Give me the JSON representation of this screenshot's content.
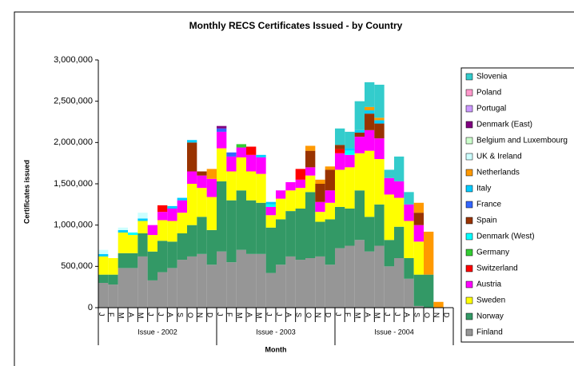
{
  "chart_data": {
    "type": "stacked_bar",
    "title": "Monthly RECS Certificates Issued - by Country",
    "y_label": "Certificates issued",
    "x_label": "Month",
    "categories": [
      "J",
      "F",
      "M",
      "A",
      "M",
      "J",
      "J",
      "A",
      "S",
      "O",
      "N",
      "D",
      "J",
      "F",
      "M",
      "A",
      "M",
      "J",
      "J",
      "A",
      "S",
      "O",
      "N",
      "D",
      "J",
      "F",
      "M",
      "A",
      "M",
      "J",
      "J",
      "A",
      "S",
      "O",
      "N",
      "D"
    ],
    "category_groups": [
      "Issue - 2002",
      "Issue - 2003",
      "Issue - 2004"
    ],
    "ylim": [
      0,
      3000000
    ],
    "yticks": [
      0,
      {
        "value": 500000,
        "label": "500,000"
      },
      {
        "value": 1000000,
        "label": "1,000,000"
      },
      {
        "value": 1500000,
        "label": "1,500,000"
      },
      {
        "value": 2000000,
        "label": "2,000,000"
      },
      {
        "value": 2500000,
        "label": "2,500,000"
      },
      {
        "value": 3000000,
        "label": "3,000,000"
      }
    ],
    "series": [
      {
        "name": "Finland",
        "color": "#969696",
        "values": [
          300000,
          280000,
          480000,
          480000,
          620000,
          330000,
          430000,
          480000,
          580000,
          620000,
          650000,
          520000,
          680000,
          550000,
          700000,
          650000,
          650000,
          420000,
          520000,
          620000,
          580000,
          600000,
          620000,
          520000,
          720000,
          750000,
          820000,
          680000,
          750000,
          500000,
          600000,
          350000,
          20000,
          0,
          0,
          0
        ]
      },
      {
        "name": "Norway",
        "color": "#339966",
        "values": [
          100000,
          120000,
          180000,
          180000,
          280000,
          350000,
          380000,
          320000,
          320000,
          380000,
          450000,
          420000,
          850000,
          750000,
          720000,
          650000,
          620000,
          550000,
          550000,
          550000,
          620000,
          800000,
          420000,
          550000,
          500000,
          450000,
          600000,
          420000,
          500000,
          320000,
          380000,
          250000,
          380000,
          400000,
          0,
          0
        ]
      },
      {
        "name": "Sweden",
        "color": "#ffff00",
        "values": [
          220000,
          200000,
          250000,
          220000,
          150000,
          200000,
          250000,
          250000,
          250000,
          500000,
          350000,
          400000,
          400000,
          350000,
          400000,
          350000,
          350000,
          150000,
          250000,
          250000,
          250000,
          200000,
          120000,
          200000,
          450000,
          500000,
          450000,
          800000,
          550000,
          550000,
          350000,
          450000,
          400000,
          0,
          0,
          0
        ]
      },
      {
        "name": "Austria",
        "color": "#ff00ff",
        "values": [
          0,
          0,
          0,
          0,
          0,
          120000,
          100000,
          150000,
          150000,
          150000,
          150000,
          220000,
          200000,
          180000,
          120000,
          200000,
          200000,
          100000,
          100000,
          100000,
          100000,
          100000,
          120000,
          150000,
          200000,
          150000,
          200000,
          250000,
          250000,
          200000,
          200000,
          200000,
          200000,
          0,
          0,
          0
        ]
      },
      {
        "name": "Switzerland",
        "color": "#ff0000",
        "values": [
          0,
          0,
          0,
          0,
          0,
          0,
          80000,
          0,
          0,
          0,
          0,
          0,
          0,
          0,
          0,
          100000,
          0,
          0,
          0,
          0,
          130000,
          0,
          0,
          0,
          50000,
          0,
          0,
          0,
          0,
          0,
          0,
          0,
          0,
          0,
          0,
          0
        ]
      },
      {
        "name": "Germany",
        "color": "#33cc33",
        "values": [
          0,
          0,
          0,
          0,
          0,
          0,
          0,
          0,
          0,
          0,
          0,
          0,
          0,
          0,
          40000,
          0,
          0,
          0,
          0,
          0,
          0,
          0,
          0,
          0,
          0,
          0,
          0,
          0,
          0,
          0,
          0,
          0,
          0,
          0,
          0,
          0
        ]
      },
      {
        "name": "Denmark (West)",
        "color": "#00ffff",
        "values": [
          0,
          0,
          0,
          30000,
          0,
          0,
          0,
          0,
          0,
          0,
          0,
          0,
          0,
          0,
          0,
          0,
          0,
          30000,
          0,
          0,
          0,
          0,
          0,
          0,
          0,
          50000,
          0,
          0,
          0,
          0,
          0,
          0,
          0,
          0,
          0,
          0
        ]
      },
      {
        "name": "Spain",
        "color": "#993300",
        "values": [
          0,
          0,
          0,
          0,
          0,
          0,
          0,
          0,
          0,
          350000,
          50000,
          0,
          0,
          0,
          0,
          0,
          0,
          0,
          0,
          0,
          0,
          200000,
          220000,
          250000,
          50000,
          0,
          50000,
          200000,
          180000,
          0,
          0,
          0,
          150000,
          0,
          0,
          0
        ]
      },
      {
        "name": "France",
        "color": "#3366ff",
        "values": [
          0,
          0,
          0,
          0,
          0,
          0,
          0,
          0,
          0,
          0,
          0,
          0,
          40000,
          50000,
          0,
          0,
          0,
          0,
          0,
          0,
          0,
          0,
          0,
          0,
          0,
          0,
          0,
          0,
          0,
          0,
          0,
          0,
          0,
          0,
          0,
          0
        ]
      },
      {
        "name": "Italy",
        "color": "#00ccff",
        "values": [
          30000,
          0,
          30000,
          0,
          30000,
          0,
          0,
          30000,
          30000,
          30000,
          0,
          0,
          0,
          0,
          0,
          0,
          30000,
          30000,
          0,
          0,
          0,
          0,
          0,
          0,
          0,
          30000,
          30000,
          40000,
          40000,
          0,
          0,
          0,
          0,
          0,
          0,
          0
        ]
      },
      {
        "name": "Netherlands",
        "color": "#ff9900",
        "values": [
          0,
          0,
          0,
          0,
          0,
          0,
          0,
          0,
          0,
          0,
          0,
          120000,
          0,
          0,
          0,
          0,
          0,
          0,
          0,
          0,
          0,
          60000,
          50000,
          40000,
          0,
          0,
          0,
          40000,
          30000,
          0,
          0,
          0,
          120000,
          520000,
          70000,
          0
        ]
      },
      {
        "name": "UK & Ireland",
        "color": "#ccffff",
        "values": [
          50000,
          0,
          30000,
          0,
          70000,
          0,
          0,
          0,
          0,
          0,
          0,
          0,
          0,
          0,
          0,
          0,
          0,
          0,
          0,
          0,
          0,
          0,
          0,
          0,
          0,
          0,
          0,
          0,
          0,
          0,
          0,
          0,
          0,
          0,
          0,
          0
        ]
      },
      {
        "name": "Belgium and Luxembourg",
        "color": "#ccffcc",
        "values": [
          0,
          0,
          0,
          0,
          0,
          0,
          0,
          0,
          0,
          0,
          0,
          0,
          0,
          0,
          0,
          0,
          0,
          0,
          0,
          0,
          0,
          0,
          0,
          0,
          0,
          0,
          0,
          0,
          0,
          0,
          0,
          0,
          0,
          0,
          0,
          0
        ]
      },
      {
        "name": "Denmark (East)",
        "color": "#800080",
        "values": [
          0,
          0,
          0,
          0,
          0,
          0,
          0,
          0,
          0,
          0,
          0,
          0,
          30000,
          0,
          0,
          0,
          0,
          0,
          0,
          0,
          0,
          0,
          0,
          0,
          0,
          0,
          0,
          0,
          0,
          0,
          0,
          0,
          0,
          0,
          0,
          0
        ]
      },
      {
        "name": "Portugal",
        "color": "#cc99ff",
        "values": [
          0,
          0,
          0,
          0,
          0,
          0,
          0,
          0,
          0,
          0,
          0,
          0,
          0,
          0,
          0,
          0,
          0,
          0,
          0,
          0,
          0,
          0,
          0,
          0,
          0,
          0,
          0,
          0,
          0,
          0,
          0,
          0,
          0,
          0,
          0,
          0
        ]
      },
      {
        "name": "Poland",
        "color": "#ff99cc",
        "values": [
          0,
          0,
          0,
          0,
          0,
          0,
          0,
          0,
          0,
          0,
          0,
          0,
          0,
          0,
          0,
          0,
          0,
          0,
          0,
          0,
          0,
          0,
          0,
          0,
          0,
          0,
          0,
          0,
          0,
          0,
          0,
          0,
          0,
          0,
          0,
          0
        ]
      },
      {
        "name": "Slovenia",
        "color": "#33cccc",
        "values": [
          0,
          0,
          0,
          0,
          0,
          0,
          0,
          0,
          0,
          0,
          0,
          0,
          0,
          0,
          0,
          0,
          0,
          0,
          0,
          0,
          0,
          0,
          0,
          0,
          200000,
          200000,
          350000,
          300000,
          400000,
          100000,
          300000,
          150000,
          0,
          0,
          0,
          0
        ]
      }
    ]
  }
}
